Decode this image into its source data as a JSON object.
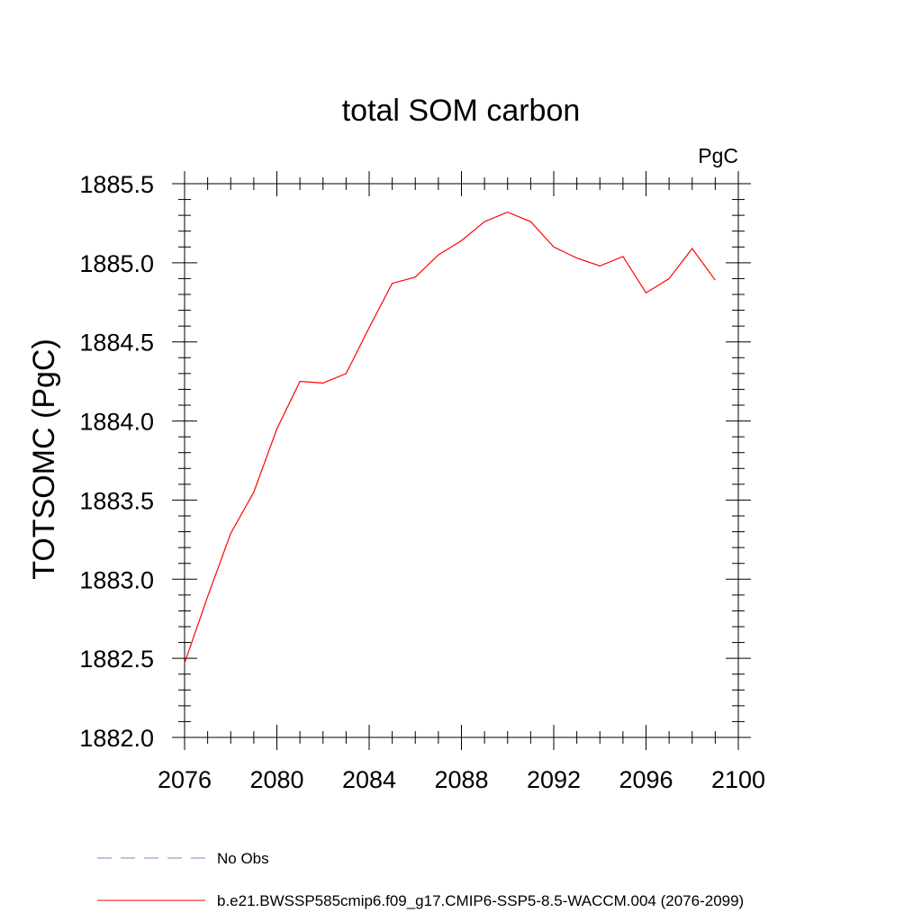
{
  "chart_data": {
    "type": "line",
    "title": "total SOM carbon",
    "units": "PgC",
    "ylabel": "TOTSOMC  (PgC)",
    "xlabel": "",
    "xlim": [
      2076,
      2100
    ],
    "ylim": [
      1882.0,
      1885.5
    ],
    "x_ticks": [
      2076,
      2080,
      2084,
      2088,
      2092,
      2096,
      2100
    ],
    "x_tick_labels": [
      "2076",
      "2080",
      "2084",
      "2088",
      "2092",
      "2096",
      "2100"
    ],
    "y_ticks": [
      1882.0,
      1882.5,
      1883.0,
      1883.5,
      1884.0,
      1884.5,
      1885.0,
      1885.5
    ],
    "y_tick_labels": [
      "1882.0",
      "1882.5",
      "1883.0",
      "1883.5",
      "1884.0",
      "1884.5",
      "1885.0",
      "1885.5"
    ],
    "grid": false,
    "x": [
      2076,
      2077,
      2078,
      2079,
      2080,
      2081,
      2082,
      2083,
      2084,
      2085,
      2086,
      2087,
      2088,
      2089,
      2090,
      2091,
      2092,
      2093,
      2094,
      2095,
      2096,
      2097,
      2098,
      2099
    ],
    "series": [
      {
        "name": "b.e21.BWSSP585cmip6.f09_g17.CMIP6-SSP5-8.5-WACCM.004 (2076-2099)",
        "color": "#ff0000",
        "dash": "solid",
        "values": [
          1882.47,
          1882.89,
          1883.29,
          1883.55,
          1883.95,
          1884.25,
          1884.24,
          1884.3,
          1884.59,
          1884.87,
          1884.91,
          1885.05,
          1885.14,
          1885.26,
          1885.32,
          1885.26,
          1885.1,
          1885.03,
          1884.98,
          1885.04,
          1884.81,
          1884.9,
          1885.09,
          1884.89
        ]
      }
    ],
    "legend": [
      {
        "label": "No Obs",
        "color": "#8080c0",
        "dash": "dashed"
      },
      {
        "label": "b.e21.BWSSP585cmip6.f09_g17.CMIP6-SSP5-8.5-WACCM.004 (2076-2099)",
        "color": "#ff0000",
        "dash": "solid"
      }
    ],
    "legend_position": "bottom-left"
  }
}
